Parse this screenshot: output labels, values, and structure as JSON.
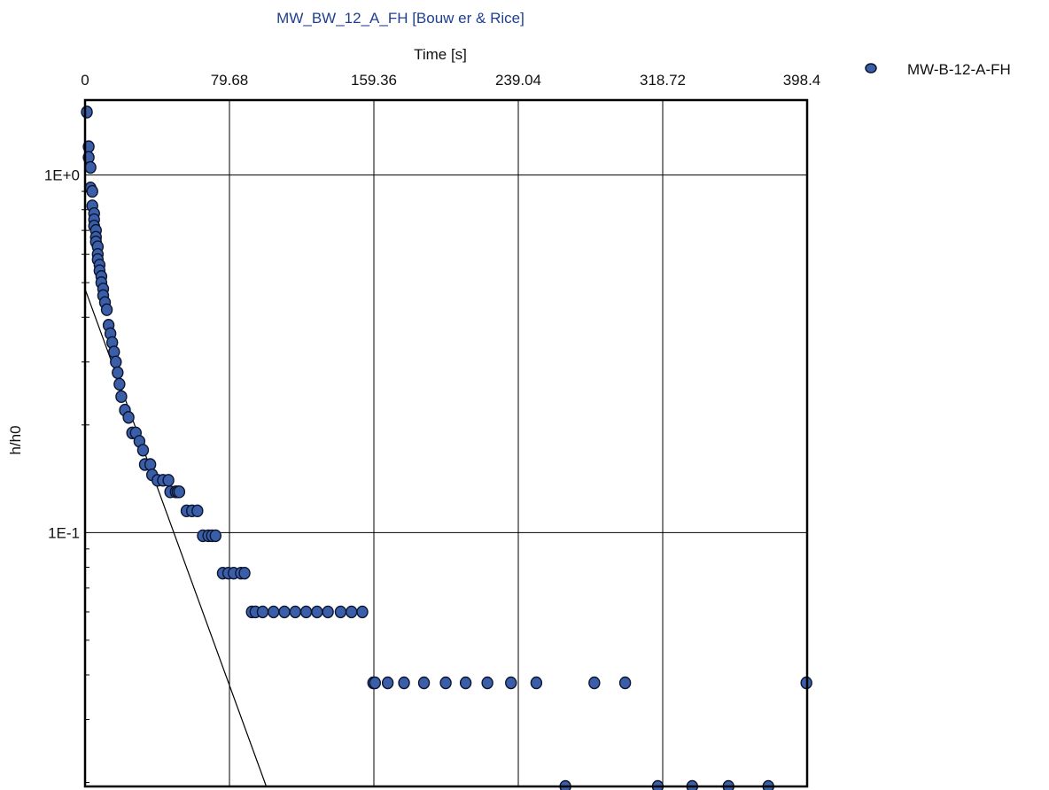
{
  "chart_data": {
    "type": "scatter",
    "title": "MW_BW_12_A_FH [Bouw er & Rice]",
    "xlabel": "Time [s]",
    "ylabel": "h/h0",
    "x_axis_position": "top",
    "y_scale": "log",
    "xlim": [
      0,
      398.4
    ],
    "ylim": [
      0.0195,
      1.62
    ],
    "x_ticks": [
      "0",
      "79.68",
      "159.36",
      "239.04",
      "318.72",
      "398.4"
    ],
    "x_tick_values": [
      0,
      79.68,
      159.36,
      239.04,
      318.72,
      398.4
    ],
    "y_ticks": [
      "1E+0",
      "1E-1"
    ],
    "y_tick_values": [
      1,
      0.1
    ],
    "grid": true,
    "legend_position": "top-right",
    "colors": {
      "marker_fill": "#3a5ea8",
      "marker_edge": "#0c1530",
      "grid": "#000000",
      "title": "#1f3f8f",
      "fit_line": "#000000"
    },
    "series": [
      {
        "name": "MW-B-12-A-FH",
        "kind": "points",
        "x": [
          1,
          2,
          2,
          3,
          3,
          4,
          4,
          5,
          5,
          5,
          6,
          6,
          6,
          7,
          7,
          7,
          8,
          8,
          9,
          9,
          10,
          10,
          11,
          12,
          13,
          14,
          15,
          16,
          17,
          18,
          19,
          20,
          22,
          24,
          26,
          28,
          30,
          32,
          33,
          36,
          37,
          40,
          43,
          46,
          47,
          50,
          51,
          52,
          56,
          59,
          62,
          65,
          68,
          70,
          72,
          76,
          79,
          82,
          86,
          88,
          92,
          94,
          98,
          104,
          110,
          116,
          122,
          128,
          134,
          141,
          147,
          153,
          159,
          160,
          167,
          176,
          187,
          199,
          210,
          222,
          235,
          249,
          281,
          298,
          398,
          265,
          316,
          335,
          355,
          377
        ],
        "y": [
          1.5,
          1.2,
          1.12,
          1.05,
          0.92,
          0.9,
          0.82,
          0.78,
          0.75,
          0.72,
          0.7,
          0.67,
          0.65,
          0.63,
          0.6,
          0.58,
          0.56,
          0.54,
          0.52,
          0.5,
          0.48,
          0.46,
          0.44,
          0.42,
          0.38,
          0.36,
          0.34,
          0.32,
          0.3,
          0.28,
          0.26,
          0.24,
          0.22,
          0.21,
          0.19,
          0.19,
          0.18,
          0.17,
          0.155,
          0.155,
          0.145,
          0.14,
          0.14,
          0.14,
          0.13,
          0.13,
          0.13,
          0.13,
          0.115,
          0.115,
          0.115,
          0.098,
          0.098,
          0.098,
          0.098,
          0.077,
          0.077,
          0.077,
          0.077,
          0.077,
          0.06,
          0.06,
          0.06,
          0.06,
          0.06,
          0.06,
          0.06,
          0.06,
          0.06,
          0.06,
          0.06,
          0.06,
          0.038,
          0.038,
          0.038,
          0.038,
          0.038,
          0.038,
          0.038,
          0.038,
          0.038,
          0.038,
          0.038,
          0.038,
          0.038,
          0.0195,
          0.0195,
          0.0195,
          0.0195,
          0.0195
        ]
      },
      {
        "kind": "fit-line",
        "x": [
          0,
          100
        ],
        "y": [
          0.48,
          0.0195
        ]
      }
    ]
  }
}
